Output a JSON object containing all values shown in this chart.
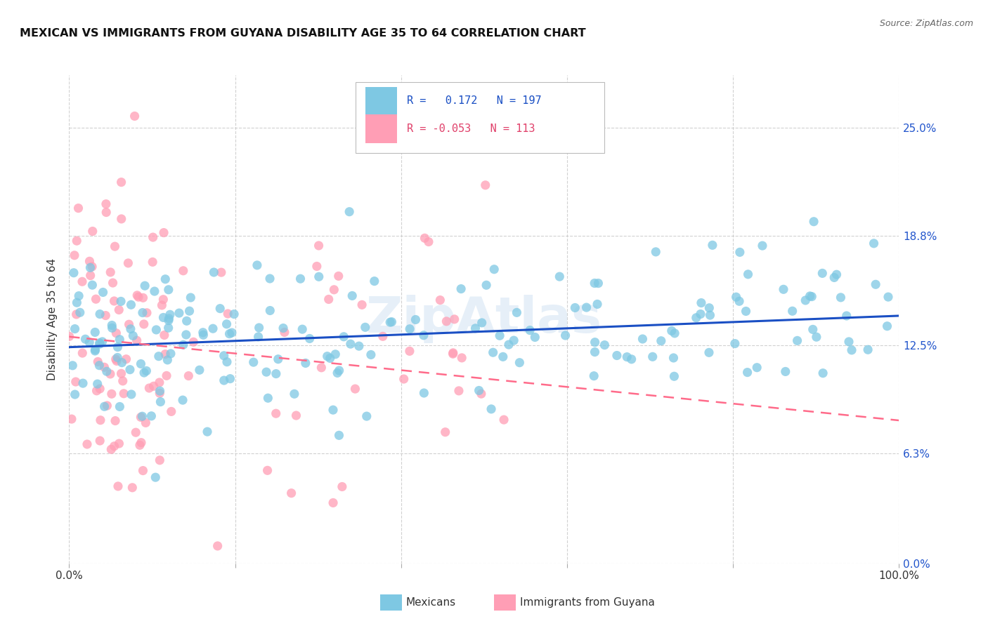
{
  "title": "MEXICAN VS IMMIGRANTS FROM GUYANA DISABILITY AGE 35 TO 64 CORRELATION CHART",
  "source": "Source: ZipAtlas.com",
  "ylabel": "Disability Age 35 to 64",
  "r_mexican": 0.172,
  "n_mexican": 197,
  "r_guyana": -0.053,
  "n_guyana": 113,
  "ytick_labels": [
    "0.0%",
    "6.3%",
    "12.5%",
    "18.8%",
    "25.0%"
  ],
  "ytick_values": [
    0.0,
    6.3,
    12.5,
    18.8,
    25.0
  ],
  "xlim": [
    0,
    100
  ],
  "ylim": [
    0,
    28
  ],
  "color_mexican": "#7ec8e3",
  "color_guyana": "#ff9eb5",
  "trendline_mexican": "#1a4fc4",
  "trendline_guyana": "#ff6b8a",
  "background_color": "#ffffff",
  "grid_color": "#cccccc",
  "legend_label_mexican": "Mexicans",
  "legend_label_guyana": "Immigrants from Guyana",
  "watermark": "ZipAtlas",
  "slope_mex": 0.018,
  "intercept_mex": 12.4,
  "slope_guy": -0.048,
  "intercept_guy": 13.0
}
